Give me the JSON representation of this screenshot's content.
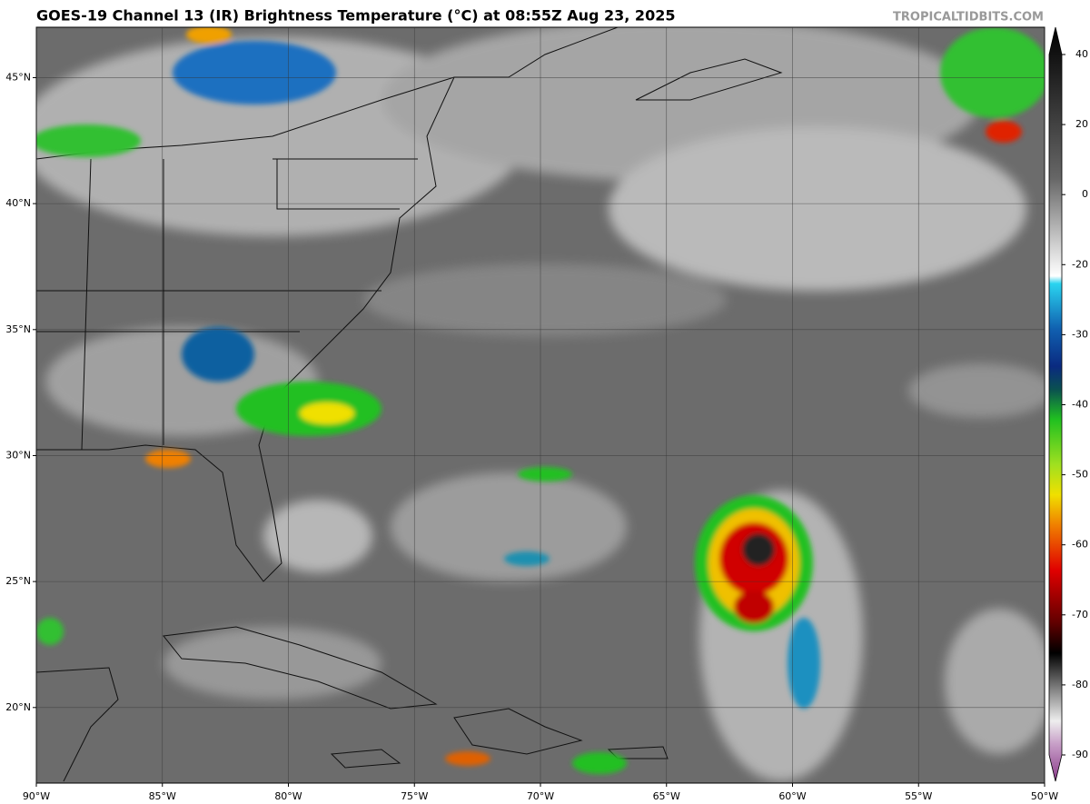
{
  "header": {
    "title": "GOES-19 Channel 13 (IR) Brightness Temperature (°C) at 08:55Z Aug 23, 2025",
    "source": "TROPICALTIDBITS.COM"
  },
  "map": {
    "xlim": [
      -90,
      -50
    ],
    "ylim": [
      17,
      47
    ],
    "xticks": [
      {
        "value": -90,
        "label": "90°W"
      },
      {
        "value": -85,
        "label": "85°W"
      },
      {
        "value": -80,
        "label": "80°W"
      },
      {
        "value": -75,
        "label": "75°W"
      },
      {
        "value": -70,
        "label": "70°W"
      },
      {
        "value": -65,
        "label": "65°W"
      },
      {
        "value": -60,
        "label": "60°W"
      },
      {
        "value": -55,
        "label": "55°W"
      },
      {
        "value": -50,
        "label": "50°W"
      }
    ],
    "yticks": [
      {
        "value": 20,
        "label": "20°N"
      },
      {
        "value": 25,
        "label": "25°N"
      },
      {
        "value": 30,
        "label": "30°N"
      },
      {
        "value": 35,
        "label": "35°N"
      },
      {
        "value": 40,
        "label": "40°N"
      },
      {
        "value": 45,
        "label": "45°N"
      }
    ],
    "grid": true
  },
  "colorbar": {
    "ticks": [
      40,
      20,
      0,
      -20,
      -30,
      -40,
      -50,
      -60,
      -70,
      -80,
      -90
    ]
  }
}
